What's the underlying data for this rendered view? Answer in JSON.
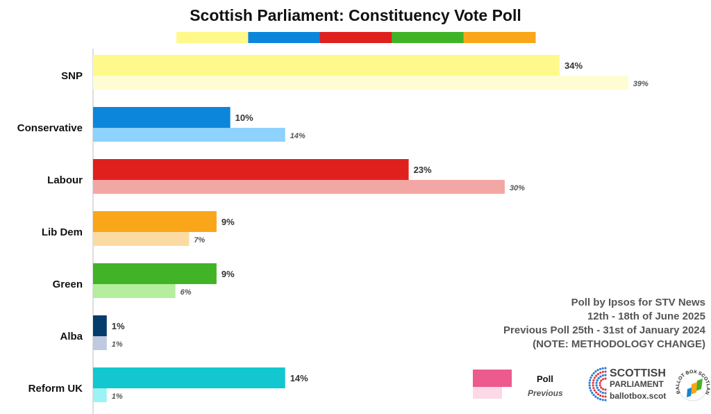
{
  "chart_data": {
    "type": "bar",
    "orientation": "horizontal",
    "title": "Scottish Parliament: Constituency Vote Poll",
    "categories": [
      "SNP",
      "Conservative",
      "Labour",
      "Lib Dem",
      "Green",
      "Alba",
      "Reform UK"
    ],
    "series": [
      {
        "name": "Poll",
        "values": [
          34,
          10,
          23,
          9,
          9,
          1,
          14
        ],
        "labels": [
          "34%",
          "10%",
          "23%",
          "9%",
          "9%",
          "1%",
          "14%"
        ]
      },
      {
        "name": "Previous",
        "values": [
          39,
          14,
          30,
          7,
          6,
          1,
          1
        ],
        "labels": [
          "39%",
          "14%",
          "30%",
          "7%",
          "6%",
          "1%",
          "1%"
        ]
      }
    ],
    "colors": {
      "poll": [
        "#FFF98C",
        "#0C86DA",
        "#E0201D",
        "#FAA61A",
        "#41B327",
        "#053C6B",
        "#12C7D0"
      ],
      "previous": [
        "#FEFCD2",
        "#8DD3FD",
        "#F3A7A5",
        "#FCDBA2",
        "#B4EE9E",
        "#BFC9DF",
        "#9DF2F3"
      ]
    },
    "color_strip": [
      "#FFF98C",
      "#0C86DA",
      "#E0201D",
      "#41B327",
      "#FAA61A"
    ],
    "xlim": [
      0,
      45
    ],
    "grid": false,
    "legend_position": "bottom-right"
  },
  "info": {
    "line1": "Poll by Ipsos for STV News",
    "line2": "12th - 18th of June 2025",
    "line3": "Previous Poll 25th - 31st of January 2024",
    "line4": "(NOTE: METHODOLOGY CHANGE)"
  },
  "legend": {
    "poll_label": "Poll",
    "previous_label": "Previous",
    "poll_color": "#EC5A8E",
    "previous_color": "#FBD9E7"
  },
  "branding": {
    "name_line1": "SCOTTISH",
    "name_line2": "PARLIAMENT",
    "site": "ballotbox.scot",
    "seal_text": "BALLOT BOX SCOTLAND",
    "logo_icon": "parliament-dots-icon",
    "seal_icon": "ballot-box-scotland-seal-icon"
  }
}
